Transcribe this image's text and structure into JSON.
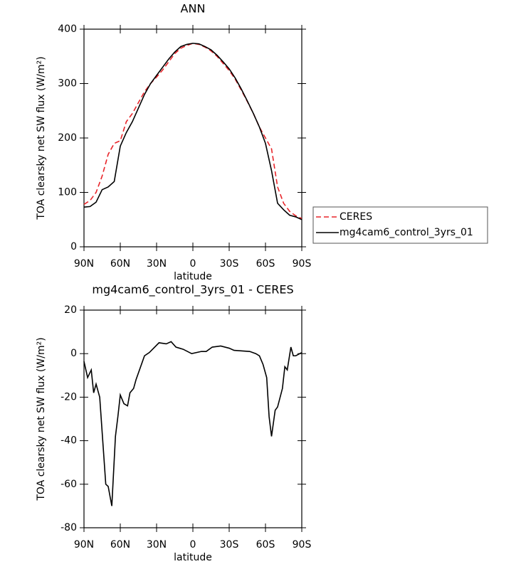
{
  "chart_data": [
    {
      "type": "line",
      "title": "ANN",
      "xlabel": "latitude",
      "ylabel": "TOA clearsky net SW flux (W/m²)",
      "xlim": [
        90,
        -90
      ],
      "xticks": [
        {
          "value": 90,
          "label": "90N"
        },
        {
          "value": 60,
          "label": "60N"
        },
        {
          "value": 30,
          "label": "30N"
        },
        0,
        {
          "value": -30,
          "label": "30S"
        },
        {
          "value": -60,
          "label": "60S"
        },
        {
          "value": -90,
          "label": "90S"
        }
      ],
      "ylim": [
        0,
        400
      ],
      "yticks": [
        0,
        100,
        200,
        300,
        400
      ],
      "legend": "right",
      "x": [
        90,
        85,
        80,
        75,
        70,
        65,
        60,
        55,
        50,
        45,
        40,
        35,
        30,
        25,
        20,
        15,
        10,
        5,
        0,
        -5,
        -10,
        -15,
        -20,
        -25,
        -30,
        -35,
        -40,
        -45,
        -50,
        -55,
        -60,
        -65,
        -70,
        -75,
        -80,
        -85,
        -90
      ],
      "series": [
        {
          "name": "CERES",
          "color": "#e8252a",
          "linestyle": "dashed",
          "values": [
            78,
            85,
            100,
            130,
            170,
            190,
            195,
            230,
            245,
            265,
            285,
            300,
            312,
            325,
            340,
            355,
            365,
            370,
            374,
            372,
            367,
            360,
            350,
            337,
            324,
            308,
            288,
            267,
            245,
            220,
            200,
            180,
            110,
            80,
            65,
            57,
            52
          ]
        },
        {
          "name": "mg4cam6_control_3yrs_01",
          "color": "#000000",
          "linestyle": "solid",
          "values": [
            73,
            74,
            82,
            105,
            110,
            120,
            185,
            210,
            230,
            255,
            280,
            300,
            315,
            330,
            345,
            358,
            368,
            372,
            374,
            373,
            368,
            362,
            352,
            340,
            327,
            310,
            290,
            268,
            245,
            220,
            190,
            140,
            80,
            68,
            58,
            55,
            50
          ]
        }
      ]
    },
    {
      "type": "line",
      "title": "mg4cam6_control_3yrs_01 - CERES",
      "xlabel": "latitude",
      "ylabel": "TOA clearsky net SW flux (W/m²)",
      "xlim": [
        90,
        -90
      ],
      "xticks": [
        {
          "value": 90,
          "label": "90N"
        },
        {
          "value": 60,
          "label": "60N"
        },
        {
          "value": 30,
          "label": "30N"
        },
        0,
        {
          "value": -30,
          "label": "30S"
        },
        {
          "value": -60,
          "label": "60S"
        },
        {
          "value": -90,
          "label": "90S"
        }
      ],
      "ylim": [
        -80,
        20
      ],
      "yticks": [
        -80,
        -60,
        -40,
        -20,
        0,
        20
      ],
      "x": [
        90,
        87,
        84,
        82,
        80,
        77,
        72,
        70,
        67,
        64,
        62,
        60,
        57,
        54,
        52,
        49,
        47,
        40,
        36,
        28,
        22,
        18,
        14,
        8,
        1,
        -7,
        -11,
        -16,
        -23,
        -30,
        -34,
        -47,
        -52,
        -55,
        -58,
        -61,
        -63,
        -65,
        -68,
        -70,
        -74,
        -76,
        -78,
        -81,
        -83,
        -85,
        -90
      ],
      "color": "#000000",
      "values": [
        -3.6,
        -11,
        -7.5,
        -18,
        -14,
        -20,
        -60,
        -61,
        -70,
        -38,
        -29,
        -19,
        -23,
        -24,
        -18,
        -16,
        -12,
        -1,
        0.5,
        5,
        4.5,
        5.5,
        3,
        2,
        0,
        1,
        1,
        3,
        3.5,
        2.5,
        1.5,
        1,
        0,
        -1,
        -5,
        -11,
        -29,
        -38,
        -26,
        -24.5,
        -16,
        -6,
        -7.5,
        3,
        -1,
        -1,
        0.5
      ]
    }
  ]
}
